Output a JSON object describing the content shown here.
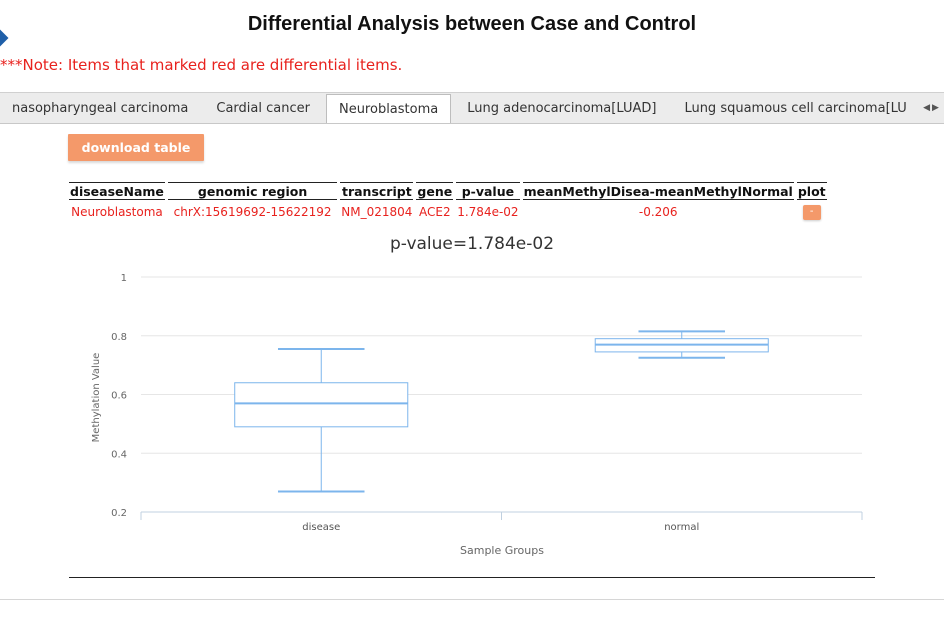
{
  "page": {
    "title": "Differential Analysis between Case and Control",
    "note": "***Note: Items that marked red are differential items."
  },
  "tabs": [
    {
      "label": "nasopharyngeal carcinoma",
      "active": false
    },
    {
      "label": "Cardial cancer",
      "active": false
    },
    {
      "label": "Neuroblastoma",
      "active": true
    },
    {
      "label": "Lung adenocarcinoma[LUAD]",
      "active": false
    },
    {
      "label": "Lung squamous cell carcinoma[LU",
      "active": false
    }
  ],
  "tab_scroll": {
    "left_icon": "triangle-left-icon",
    "right_icon": "triangle-right-icon"
  },
  "toolbar": {
    "download_label": "download table"
  },
  "table": {
    "headers": [
      "diseaseName",
      "genomic region",
      "transcript",
      "gene",
      "p-value",
      "meanMethylDisea-meanMethylNormal",
      "plot"
    ],
    "rows": [
      [
        "Neuroblastoma",
        "chrX:15619692-15622192",
        "NM_021804",
        "ACE2",
        "1.784e-02",
        "-0.206",
        "-"
      ]
    ],
    "row_color": "#e8221e"
  },
  "chart_data": {
    "type": "boxplot",
    "title": "p-value=1.784e-02",
    "xlabel": "Sample Groups",
    "ylabel": "Methylation Value",
    "ylim": [
      0.2,
      1
    ],
    "yticks": [
      0.2,
      0.4,
      0.6,
      0.8,
      1
    ],
    "grid": true,
    "color": "#7cb5ec",
    "categories": [
      "disease",
      "normal"
    ],
    "boxes": [
      {
        "name": "disease",
        "low": 0.27,
        "q1": 0.49,
        "median": 0.57,
        "q3": 0.64,
        "high": 0.755
      },
      {
        "name": "normal",
        "low": 0.725,
        "q1": 0.745,
        "median": 0.77,
        "q3": 0.79,
        "high": 0.815
      }
    ]
  }
}
